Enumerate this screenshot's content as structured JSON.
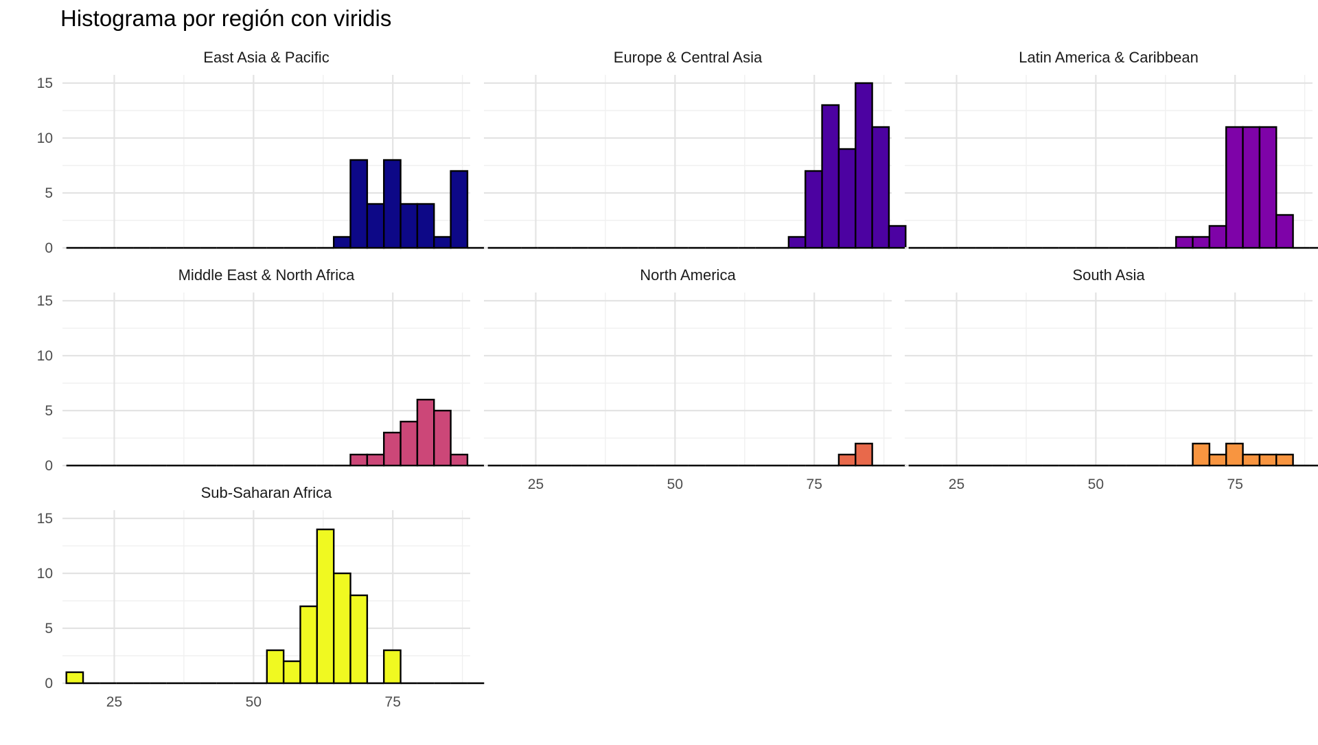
{
  "chart_data": {
    "type": "bar",
    "title": "Histograma por región con viridis",
    "xlabel": "",
    "ylabel": "",
    "xlim": [
      15.7,
      88.9
    ],
    "ylim": [
      0,
      15.75
    ],
    "x_ticks": [
      25,
      50,
      75
    ],
    "y_ticks": [
      0,
      5,
      10,
      15
    ],
    "bin_start": 16.4,
    "bin_width": 3.0,
    "grid": true,
    "legend": "none",
    "panels": [
      {
        "name": "East Asia & Pacific",
        "color": "#0d0887",
        "counts": [
          0,
          0,
          0,
          0,
          0,
          0,
          0,
          0,
          0,
          0,
          0,
          0,
          0,
          0,
          0,
          0,
          1,
          8,
          4,
          8,
          4,
          4,
          1,
          7,
          0
        ]
      },
      {
        "name": "Europe & Central Asia",
        "color": "#4c02a1",
        "counts": [
          0,
          0,
          0,
          0,
          0,
          0,
          0,
          0,
          0,
          0,
          0,
          0,
          0,
          0,
          0,
          0,
          0,
          0,
          1,
          7,
          13,
          9,
          15,
          11,
          2
        ]
      },
      {
        "name": "Latin America & Caribbean",
        "color": "#7e03a8",
        "counts": [
          0,
          0,
          0,
          0,
          0,
          0,
          0,
          0,
          0,
          0,
          0,
          0,
          0,
          0,
          0,
          0,
          1,
          1,
          2,
          11,
          11,
          11,
          3,
          0,
          0
        ]
      },
      {
        "name": "Middle East & North Africa",
        "color": "#cc4778",
        "counts": [
          0,
          0,
          0,
          0,
          0,
          0,
          0,
          0,
          0,
          0,
          0,
          0,
          0,
          0,
          0,
          0,
          0,
          1,
          1,
          3,
          4,
          6,
          5,
          1,
          0
        ]
      },
      {
        "name": "North America",
        "color": "#e8694b",
        "counts": [
          0,
          0,
          0,
          0,
          0,
          0,
          0,
          0,
          0,
          0,
          0,
          0,
          0,
          0,
          0,
          0,
          0,
          0,
          0,
          0,
          0,
          1,
          2,
          0,
          0
        ]
      },
      {
        "name": "South Asia",
        "color": "#f89540",
        "counts": [
          0,
          0,
          0,
          0,
          0,
          0,
          0,
          0,
          0,
          0,
          0,
          0,
          0,
          0,
          0,
          0,
          0,
          2,
          1,
          2,
          1,
          1,
          1,
          0,
          0
        ]
      },
      {
        "name": "Sub-Saharan Africa",
        "color": "#f0f921",
        "counts": [
          1,
          0,
          0,
          0,
          0,
          0,
          0,
          0,
          0,
          0,
          0,
          0,
          3,
          2,
          7,
          14,
          10,
          8,
          0,
          3,
          0,
          0,
          0,
          0,
          0
        ]
      }
    ]
  }
}
